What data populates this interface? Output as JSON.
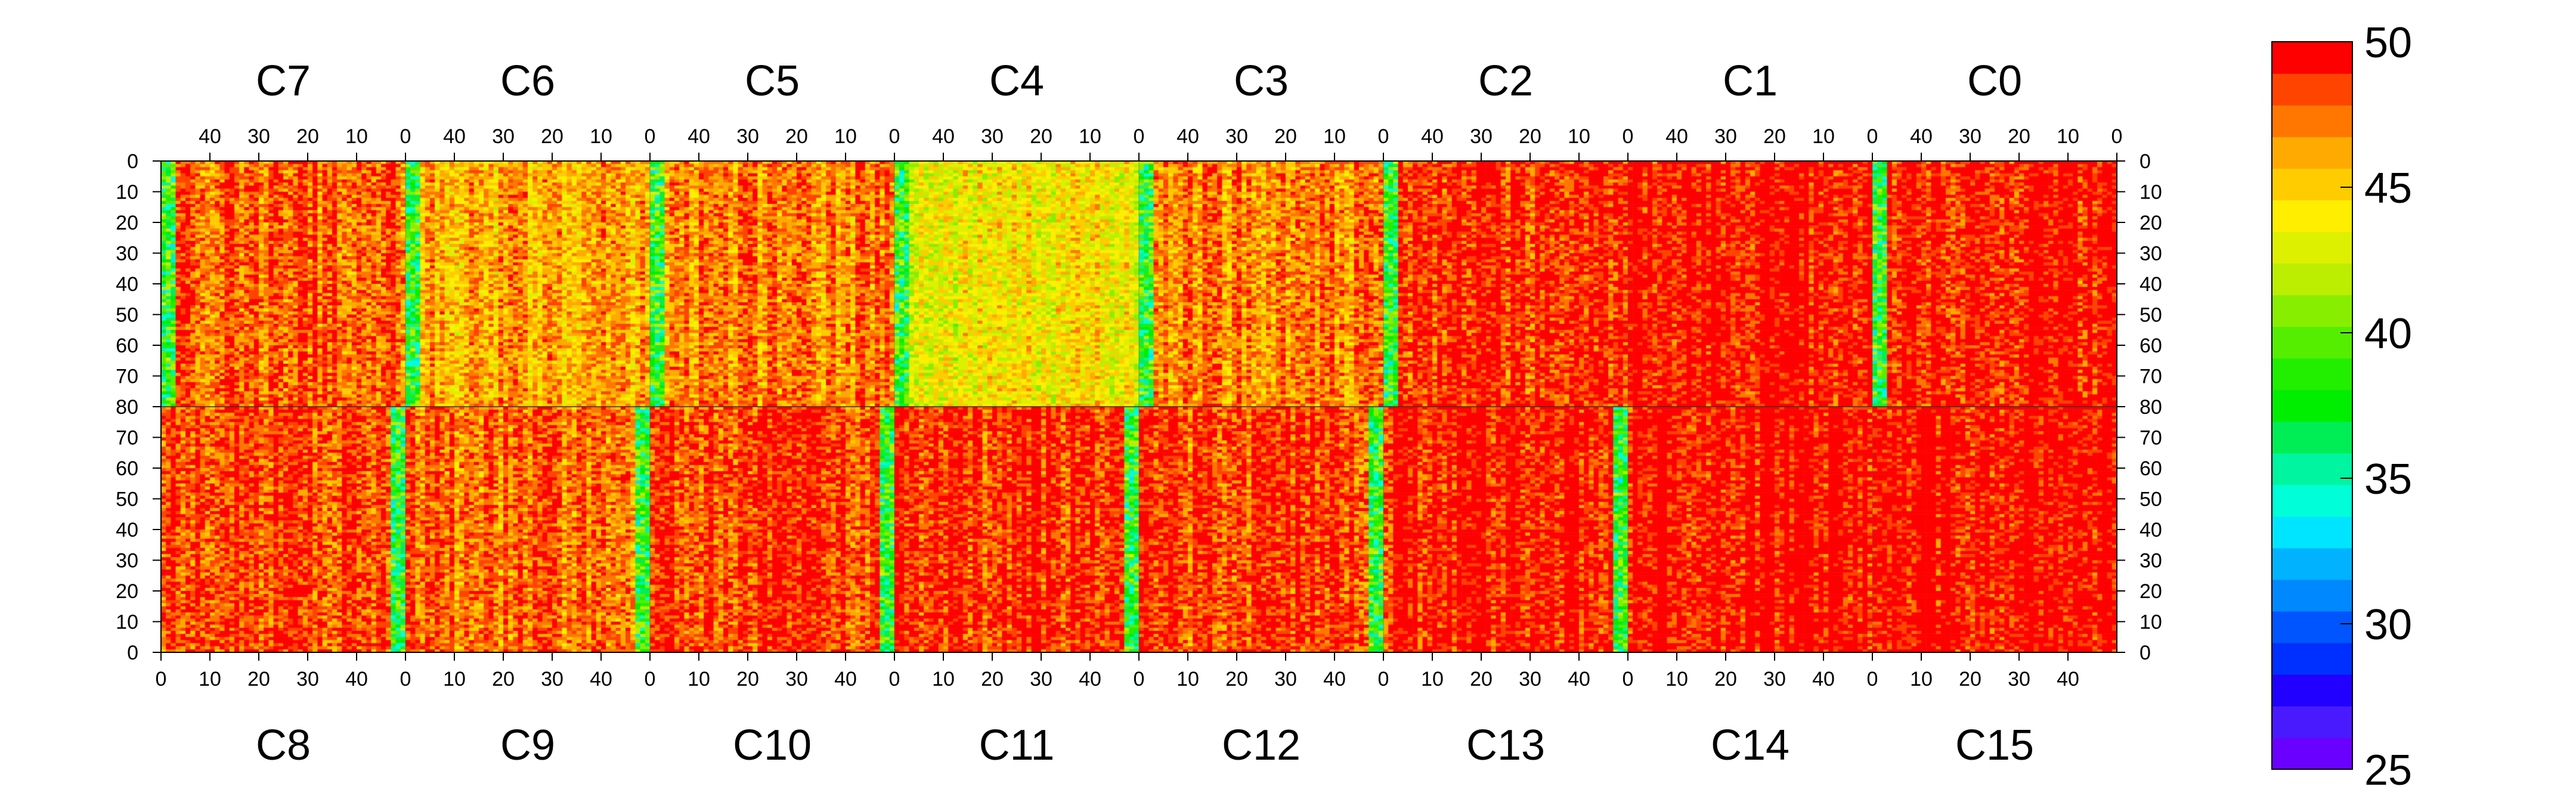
{
  "chart_data": {
    "type": "heatmap",
    "title": "",
    "columns_per_chip": 50,
    "rows_per_half": 80,
    "z_range": [
      25,
      50
    ],
    "top_chips": [
      "C7",
      "C6",
      "C5",
      "C4",
      "C3",
      "C2",
      "C1",
      "C0"
    ],
    "bottom_chips": [
      "C8",
      "C9",
      "C10",
      "C11",
      "C12",
      "C13",
      "C14",
      "C15"
    ],
    "top_x_ticks": [
      "40",
      "30",
      "20",
      "10",
      "0"
    ],
    "top_x_tick_values": [
      40,
      30,
      20,
      10,
      0
    ],
    "bottom_x_ticks": [
      "0",
      "10",
      "20",
      "30",
      "40"
    ],
    "bottom_x_tick_values": [
      0,
      10,
      20,
      30,
      40
    ],
    "top_y_ticks": [
      "0",
      "10",
      "20",
      "30",
      "40",
      "50",
      "60",
      "70",
      "80"
    ],
    "top_y_tick_values": [
      0,
      10,
      20,
      30,
      40,
      50,
      60,
      70,
      80
    ],
    "bottom_y_ticks": [
      "70",
      "60",
      "50",
      "40",
      "30",
      "20",
      "10",
      "0"
    ],
    "bottom_y_tick_values": [
      70,
      60,
      50,
      40,
      30,
      20,
      10,
      0
    ],
    "colorbar_labels": [
      "50",
      "45",
      "40",
      "35",
      "30",
      "25"
    ],
    "colorbar_values": [
      50,
      45,
      40,
      35,
      30,
      25
    ],
    "chip_mean_values": {
      "C7": 48,
      "C6": 46,
      "C5": 47,
      "C4": 44,
      "C3": 47,
      "C2": 49,
      "C1": 49.8,
      "C0": 49.3,
      "C8": 48.5,
      "C9": 47.5,
      "C10": 48.5,
      "C11": 49,
      "C12": 48.5,
      "C13": 49.5,
      "C14": 50,
      "C15": 50
    },
    "edge_column_value": 38,
    "palette": [
      "#6a00ff",
      "#4a1aff",
      "#2200ff",
      "#0030ff",
      "#0055ff",
      "#0088ff",
      "#00b2ff",
      "#00e5ff",
      "#00ffd8",
      "#00f5a0",
      "#00ee55",
      "#00ee00",
      "#22ee00",
      "#55ee00",
      "#88ee00",
      "#bbee00",
      "#ddf000",
      "#ffee00",
      "#ffcc00",
      "#ffaa00",
      "#ff7700",
      "#ff4400",
      "#ff0000"
    ]
  }
}
